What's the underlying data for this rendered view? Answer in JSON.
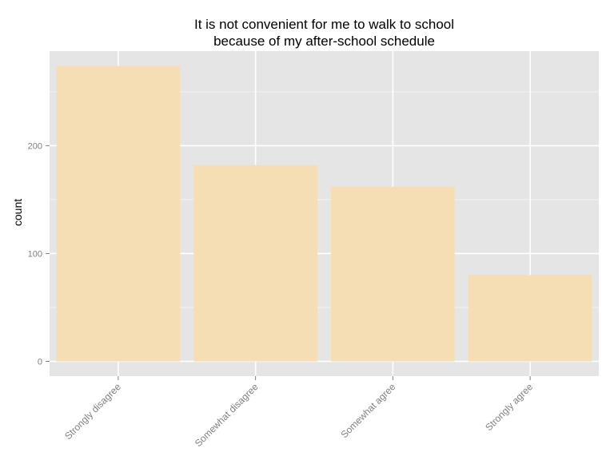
{
  "chart_data": {
    "type": "bar",
    "title_lines": [
      "It is not convenient for me to walk to school",
      "because of my after-school schedule"
    ],
    "xlabel": "",
    "ylabel": "count",
    "categories": [
      "Strongly disagree",
      "Somewhat disagree",
      "Somewhat agree",
      "Strongly agree"
    ],
    "values": [
      274,
      182,
      162,
      80
    ],
    "yticks": [
      0,
      100,
      200
    ],
    "ylim": [
      -13.7,
      287.7
    ],
    "grid": true,
    "bar_color": "#F5DEB3",
    "panel_color": "#E5E5E5",
    "tick_text_color": "#7F7F7F"
  }
}
